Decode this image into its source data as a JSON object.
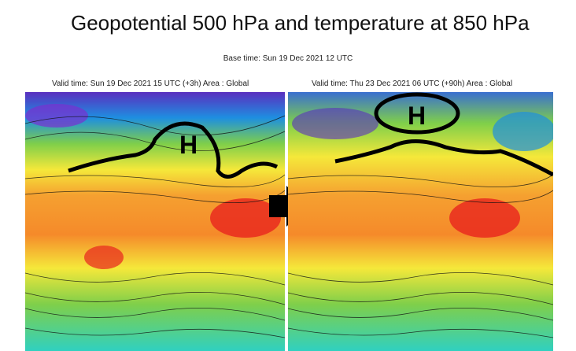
{
  "title": "Geopotential 500 hPa and temperature at 850  hPa",
  "base_time": "Base time: Sun 19 Dec 2021 12 UTC",
  "maps": [
    {
      "valid_time": "Valid time: Sun 19 Dec 2021 15 UTC (+3h) Area : Global",
      "high_label": "H"
    },
    {
      "valid_time": "Valid time: Thu 23 Dec 2021 06 UTC (+90h) Area : Global",
      "high_label": "H"
    }
  ],
  "colors": {
    "cold": "#5a2fbf",
    "cool": "#1e8fe0",
    "mild": "#7fcf4a",
    "warm": "#f5e83a",
    "hot": "#f59030",
    "very_hot": "#e8241e",
    "bottom": "#30d0c0"
  },
  "icons": {
    "transition": "right-arrow-icon"
  }
}
